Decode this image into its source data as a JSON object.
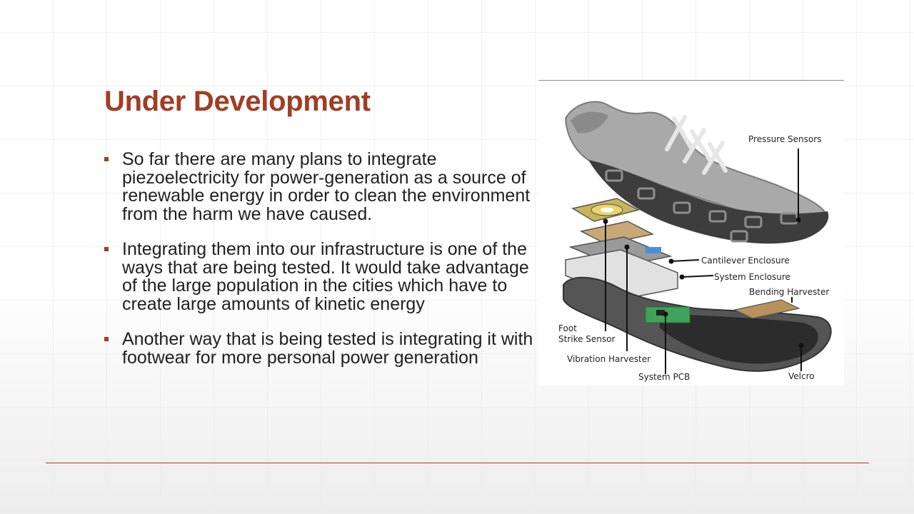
{
  "slide": {
    "title": "Under Development",
    "bullets": [
      "So far there are many plans to integrate piezoelectricity for power-generation as a source of renewable energy in order to clean the environment from the harm we have caused.",
      "Integrating them into our infrastructure is one of the ways that are being tested. It would take advantage of the large population in the cities which have to create large amounts of kinetic energy",
      "Another way that is being tested is integrating it with footwear for more personal power generation"
    ]
  },
  "figure": {
    "labels": {
      "pressure_sensors": "Pressure Sensors",
      "cantilever_enclosure": "Cantilever Enclosure",
      "system_enclosure": "System Enclosure",
      "bending_harvester": "Bending Harvester",
      "foot_strike_sensor_line1": "Foot",
      "foot_strike_sensor_line2": "Strike Sensor",
      "vibration_harvester": "Vibration Harvester",
      "system_pcb": "System PCB",
      "velcro": "Velcro"
    }
  },
  "colors": {
    "accent": "#a23d24",
    "text": "#1f1f1f"
  }
}
